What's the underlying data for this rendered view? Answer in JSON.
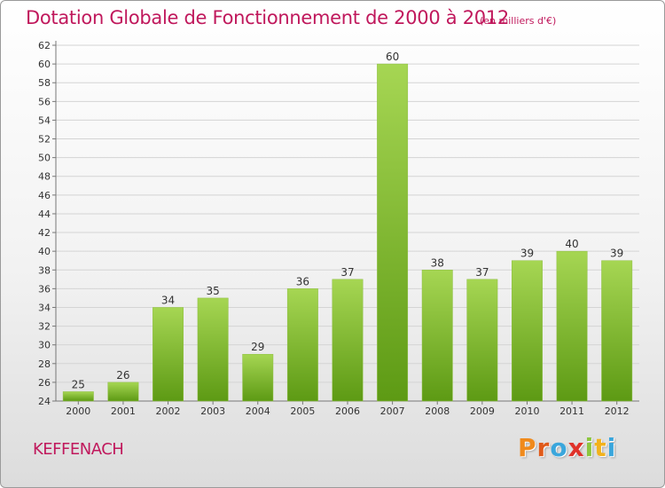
{
  "header": {
    "title": "Dotation Globale de Fonctionnement de 2000 à 2012",
    "subtitle": "(en milliers d'€)"
  },
  "footer": {
    "place": "KEFFENACH",
    "logo_text": "Proxiti",
    "logo_letters": [
      "P",
      "r",
      "o",
      "x",
      "i",
      "t",
      "i"
    ],
    "logo_colors": [
      "#f08a1c",
      "#e05a1a",
      "#3aa6dc",
      "#e0322a",
      "#8cc63e",
      "#f2b21c",
      "#3aa6dc"
    ]
  },
  "colors": {
    "bar_light": "#a6d653",
    "bar_dark": "#5d9a14",
    "title": "#c0185c",
    "grid": "#d4d4d4"
  },
  "chart_data": {
    "type": "bar",
    "categories": [
      "2000",
      "2001",
      "2002",
      "2003",
      "2004",
      "2005",
      "2006",
      "2007",
      "2008",
      "2009",
      "2010",
      "2011",
      "2012"
    ],
    "values": [
      25,
      26,
      34,
      35,
      29,
      36,
      37,
      60,
      38,
      37,
      39,
      40,
      39
    ],
    "title": "Dotation Globale de Fonctionnement de 2000 à 2012",
    "subtitle": "(en milliers d'€)",
    "xlabel": "",
    "ylabel": "",
    "ylim": [
      24,
      62
    ],
    "ytick_step": 2,
    "grid": true,
    "data_labels": true,
    "legend": "none"
  }
}
